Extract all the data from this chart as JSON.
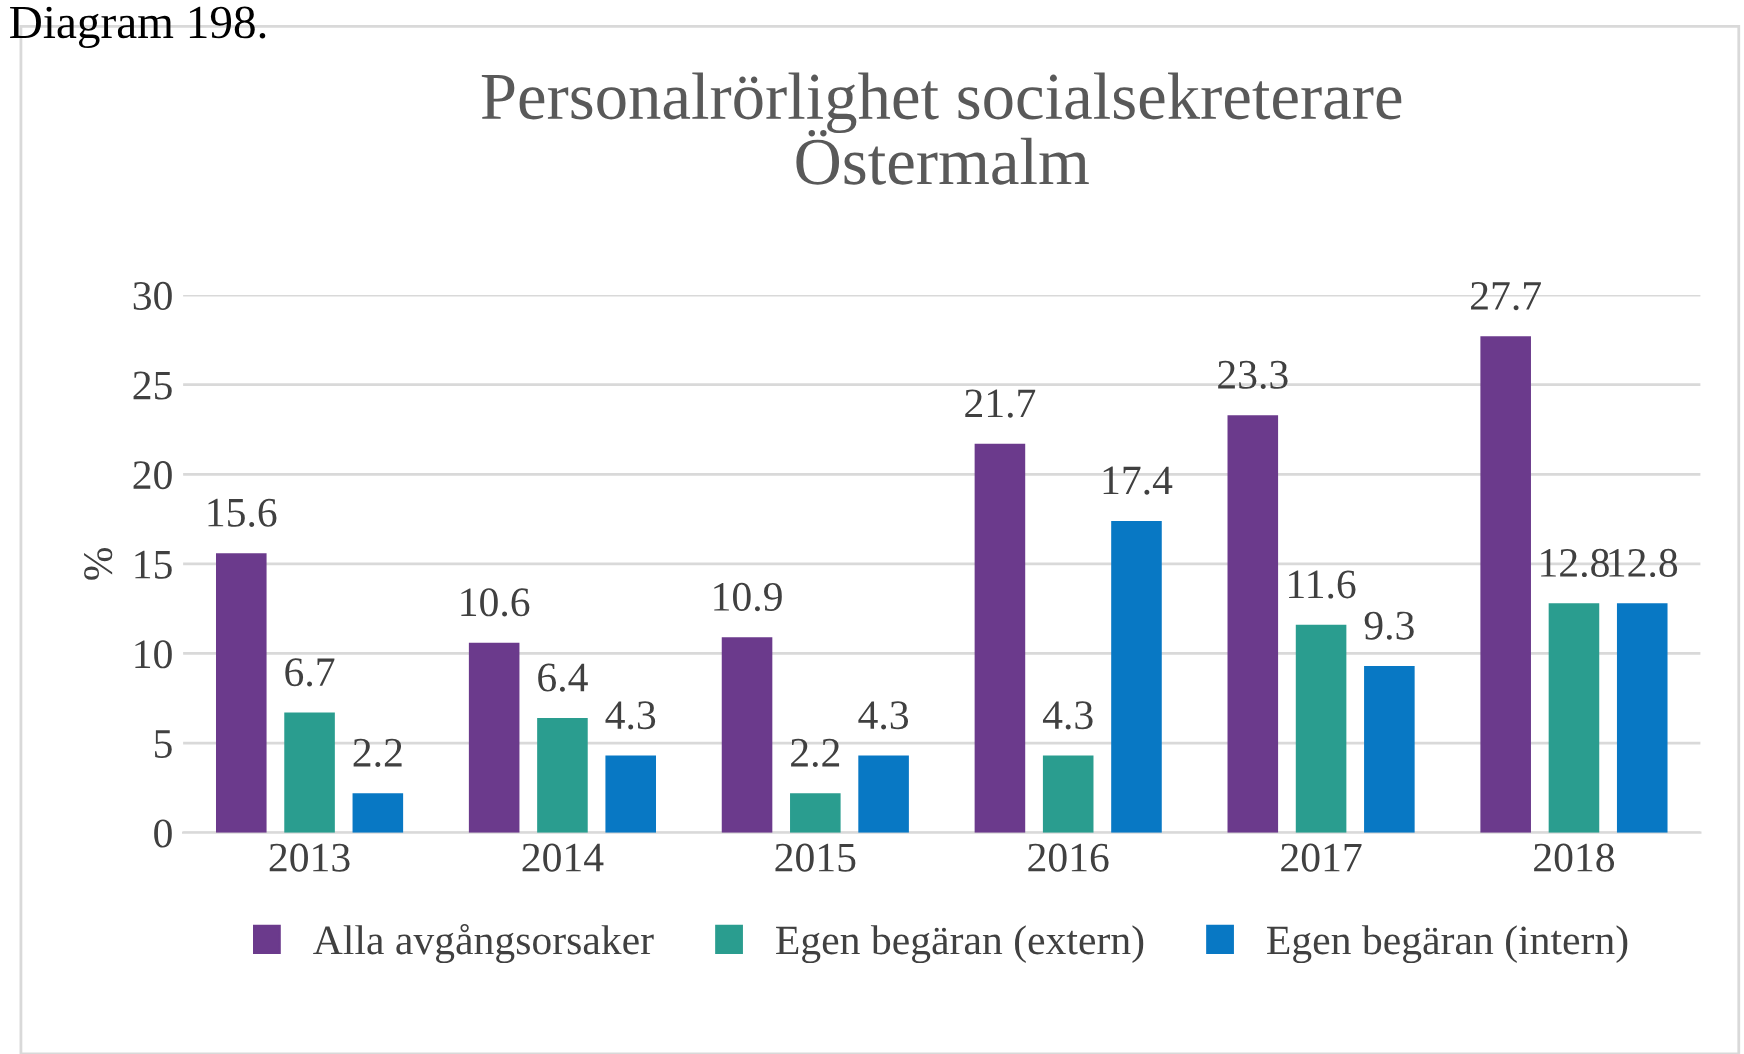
{
  "chart_data": {
    "type": "bar",
    "title": "Personalrörlighet socialsekreterare\nÖstermalm",
    "ylabel": "%",
    "annotations": [
      "Diagram 198."
    ],
    "categories": [
      "2013",
      "2014",
      "2015",
      "2016",
      "2017",
      "2018"
    ],
    "series": [
      {
        "name": "Alla avgångsorsaker",
        "color": "#6b3a8c",
        "values": [
          15.6,
          10.6,
          10.9,
          21.7,
          23.3,
          27.7
        ]
      },
      {
        "name": "Egen begäran (extern)",
        "color": "#2a9d8f",
        "values": [
          6.7,
          6.4,
          2.2,
          4.3,
          11.6,
          12.8
        ]
      },
      {
        "name": "Egen begäran (intern)",
        "color": "#0878c4",
        "values": [
          2.2,
          4.3,
          4.3,
          17.4,
          9.3,
          12.8
        ]
      }
    ],
    "ylim": [
      0,
      30
    ],
    "yticks": [
      0,
      5,
      10,
      15,
      20,
      25,
      30
    ],
    "grid": "y",
    "legend": "bottom",
    "data_labels": true
  }
}
